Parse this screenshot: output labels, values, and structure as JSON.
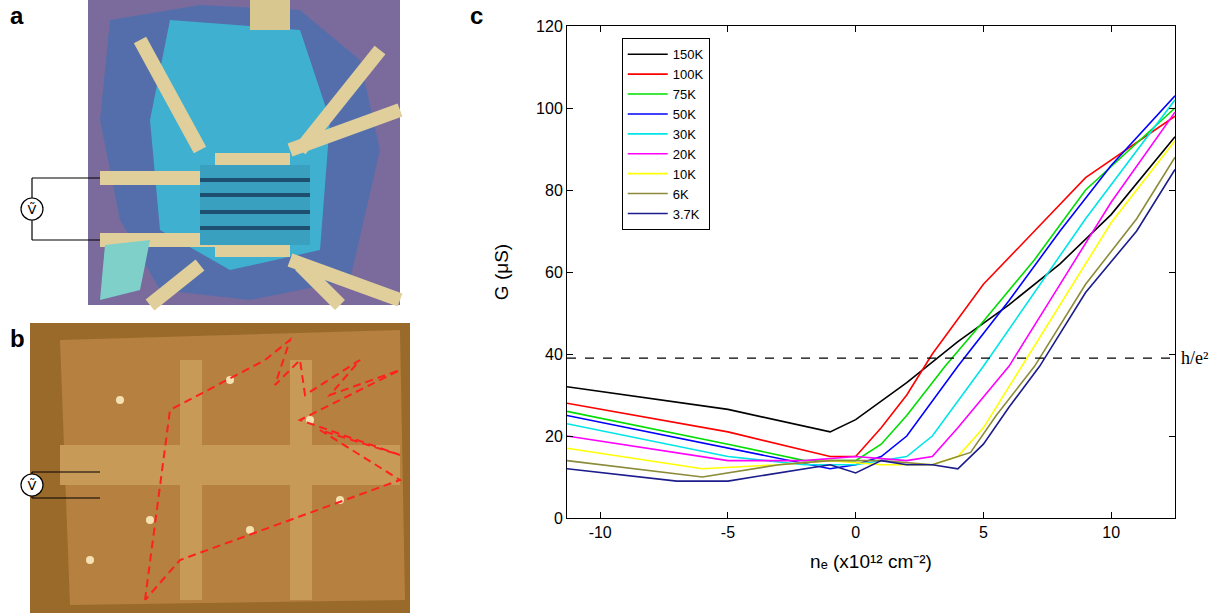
{
  "panels": [
    {
      "label": "a",
      "meter": "Ṽ"
    },
    {
      "label": "b",
      "meter": "Ṽ"
    }
  ],
  "chart_data": {
    "type": "line",
    "panel_label": "c",
    "x_label": "nₑ (x10¹² cm⁻²)",
    "y_label": "G (μS)",
    "xlim": [
      -11.3,
      12.5
    ],
    "ylim": [
      0,
      120
    ],
    "xticks": [
      -10,
      -5,
      0,
      5,
      10
    ],
    "yticks": [
      0,
      20,
      40,
      60,
      80,
      100,
      120
    ],
    "grid": false,
    "legend": "upper left",
    "hline": {
      "y": 39,
      "label": "h/e²",
      "line_style": "dashed"
    },
    "series": [
      {
        "name": "150K",
        "color": "#000000",
        "x": [
          -11.3,
          -5,
          -1,
          0,
          2,
          4,
          6,
          8,
          10,
          12.5
        ],
        "values": [
          32,
          26.5,
          21,
          24,
          33,
          43,
          52,
          62,
          74,
          93
        ]
      },
      {
        "name": "100K",
        "color": "#ff0000",
        "x": [
          -11.3,
          -5,
          -1,
          0,
          1,
          2,
          3,
          5,
          7,
          9,
          12.5
        ],
        "values": [
          28,
          21,
          15,
          15,
          22,
          30,
          40,
          57,
          70,
          83,
          98
        ]
      },
      {
        "name": "75K",
        "color": "#00dd00",
        "x": [
          -11.3,
          -5,
          -2,
          0,
          1,
          2,
          3.5,
          5,
          7,
          9,
          12.5
        ],
        "values": [
          26,
          18,
          14,
          14,
          18,
          25,
          37,
          48,
          63,
          80,
          100
        ]
      },
      {
        "name": "50K",
        "color": "#0000ff",
        "x": [
          -11.3,
          -5,
          -1,
          0,
          1,
          2,
          4,
          6,
          8,
          10,
          12.5
        ],
        "values": [
          25,
          17,
          12,
          13,
          15,
          20,
          37,
          53,
          70,
          86,
          103
        ]
      },
      {
        "name": "30K",
        "color": "#00e5e5",
        "x": [
          -11.3,
          -5,
          -2,
          0,
          2,
          3,
          5,
          7,
          9,
          12.5
        ],
        "values": [
          23,
          15,
          13,
          13,
          15,
          20,
          37,
          55,
          73,
          102
        ]
      },
      {
        "name": "20K",
        "color": "#ff00ff",
        "x": [
          -11.3,
          -5,
          -2,
          0,
          2,
          3,
          4,
          6,
          8,
          10,
          12.5
        ],
        "values": [
          20,
          14,
          14,
          15,
          14,
          15,
          22,
          37,
          57,
          77,
          99
        ]
      },
      {
        "name": "10K",
        "color": "#ffff00",
        "x": [
          -11.3,
          -6,
          -3,
          -1,
          1,
          3,
          4,
          5,
          6.5,
          8,
          10,
          12.5
        ],
        "values": [
          17,
          12,
          13,
          14,
          13,
          13,
          15,
          22,
          37,
          52,
          72,
          92
        ]
      },
      {
        "name": "6K",
        "color": "#8b8b3a",
        "x": [
          -11.3,
          -6,
          -3,
          -1,
          1,
          3,
          4.5,
          5.5,
          7,
          9,
          11,
          12.5
        ],
        "values": [
          14,
          10,
          13,
          14,
          14,
          13,
          16,
          25,
          37,
          57,
          73,
          88
        ]
      },
      {
        "name": "3.7K",
        "color": "#1c1c8c",
        "x": [
          -11.3,
          -7,
          -5,
          -3,
          -1,
          0,
          1,
          2,
          3,
          4,
          5,
          6,
          7.2,
          9,
          11,
          12.5
        ],
        "values": [
          12,
          9,
          9,
          11,
          13,
          11,
          14,
          13,
          13,
          12,
          18,
          27,
          37,
          55,
          70,
          85
        ]
      }
    ]
  }
}
